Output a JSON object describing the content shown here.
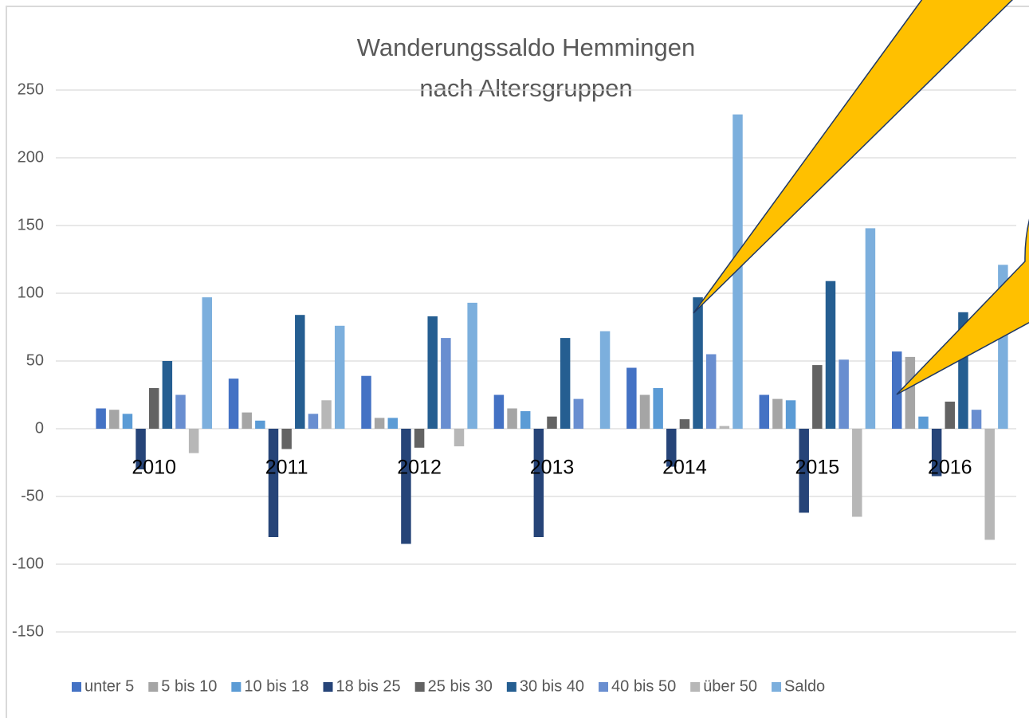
{
  "chart_data": {
    "type": "bar",
    "title_lines": [
      "Wanderungssaldo Hemmingen",
      "nach Altersgruppen"
    ],
    "categories": [
      "2010",
      "2011",
      "2012",
      "2013",
      "2014",
      "2015",
      "2016"
    ],
    "series": [
      {
        "name": "unter 5",
        "color": "#4472c4",
        "values": [
          15,
          37,
          39,
          25,
          45,
          25,
          57
        ]
      },
      {
        "name": "5 bis 10",
        "color": "#a5a5a5",
        "values": [
          14,
          12,
          8,
          15,
          25,
          22,
          53
        ]
      },
      {
        "name": "10 bis 18",
        "color": "#5b9bd5",
        "values": [
          11,
          6,
          8,
          13,
          30,
          21,
          9
        ]
      },
      {
        "name": "18 bis 25",
        "color": "#264478",
        "values": [
          -30,
          -80,
          -85,
          -80,
          -28,
          -62,
          -35
        ]
      },
      {
        "name": "25 bis 30",
        "color": "#636363",
        "values": [
          30,
          -15,
          -14,
          9,
          7,
          47,
          20
        ]
      },
      {
        "name": "30 bis 40",
        "color": "#255e91",
        "values": [
          50,
          84,
          83,
          67,
          97,
          109,
          86
        ]
      },
      {
        "name": "40 bis 50",
        "color": "#698ed0",
        "values": [
          25,
          11,
          67,
          22,
          55,
          51,
          14
        ]
      },
      {
        "name": "über 50",
        "color": "#b7b7b7",
        "values": [
          -18,
          21,
          -13,
          0,
          2,
          -65,
          -82
        ]
      },
      {
        "name": "Saldo",
        "color": "#7cafdd",
        "values": [
          97,
          76,
          93,
          72,
          232,
          148,
          121
        ]
      }
    ],
    "ylim": [
      -170,
      265
    ],
    "yticks": [
      -150,
      -100,
      -50,
      0,
      50,
      100,
      150,
      200,
      250
    ],
    "grid": true,
    "legend": "bottom"
  }
}
